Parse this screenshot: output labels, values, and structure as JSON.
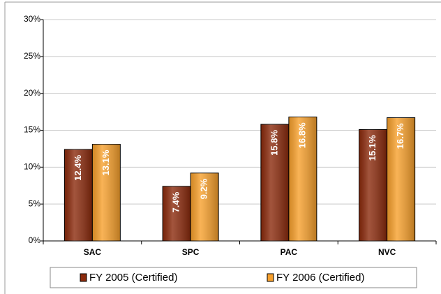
{
  "chart_data": {
    "type": "bar",
    "categories": [
      "SAC",
      "SPC",
      "PAC",
      "NVC"
    ],
    "series": [
      {
        "name": "FY 2005 (Certified)",
        "color": "#8b2a0c",
        "values": [
          12.4,
          7.4,
          15.8,
          15.1
        ],
        "value_labels": [
          "12.4%",
          "7.4%",
          "15.8%",
          "15.1%"
        ]
      },
      {
        "name": "FY 2006 (Certified)",
        "color": "#f7a02c",
        "values": [
          13.1,
          9.2,
          16.8,
          16.7
        ],
        "value_labels": [
          "13.1%",
          "9.2%",
          "16.8%",
          "16.7%"
        ]
      }
    ],
    "ylim": [
      0,
      30
    ],
    "yticks": [
      {
        "value": 0,
        "label": "0%"
      },
      {
        "value": 5,
        "label": "5%"
      },
      {
        "value": 10,
        "label": "10%"
      },
      {
        "value": 15,
        "label": "15%"
      },
      {
        "value": 20,
        "label": "20%"
      },
      {
        "value": 25,
        "label": "25%"
      },
      {
        "value": 30,
        "label": "30%"
      }
    ],
    "grid": true,
    "legend": "bottom"
  }
}
